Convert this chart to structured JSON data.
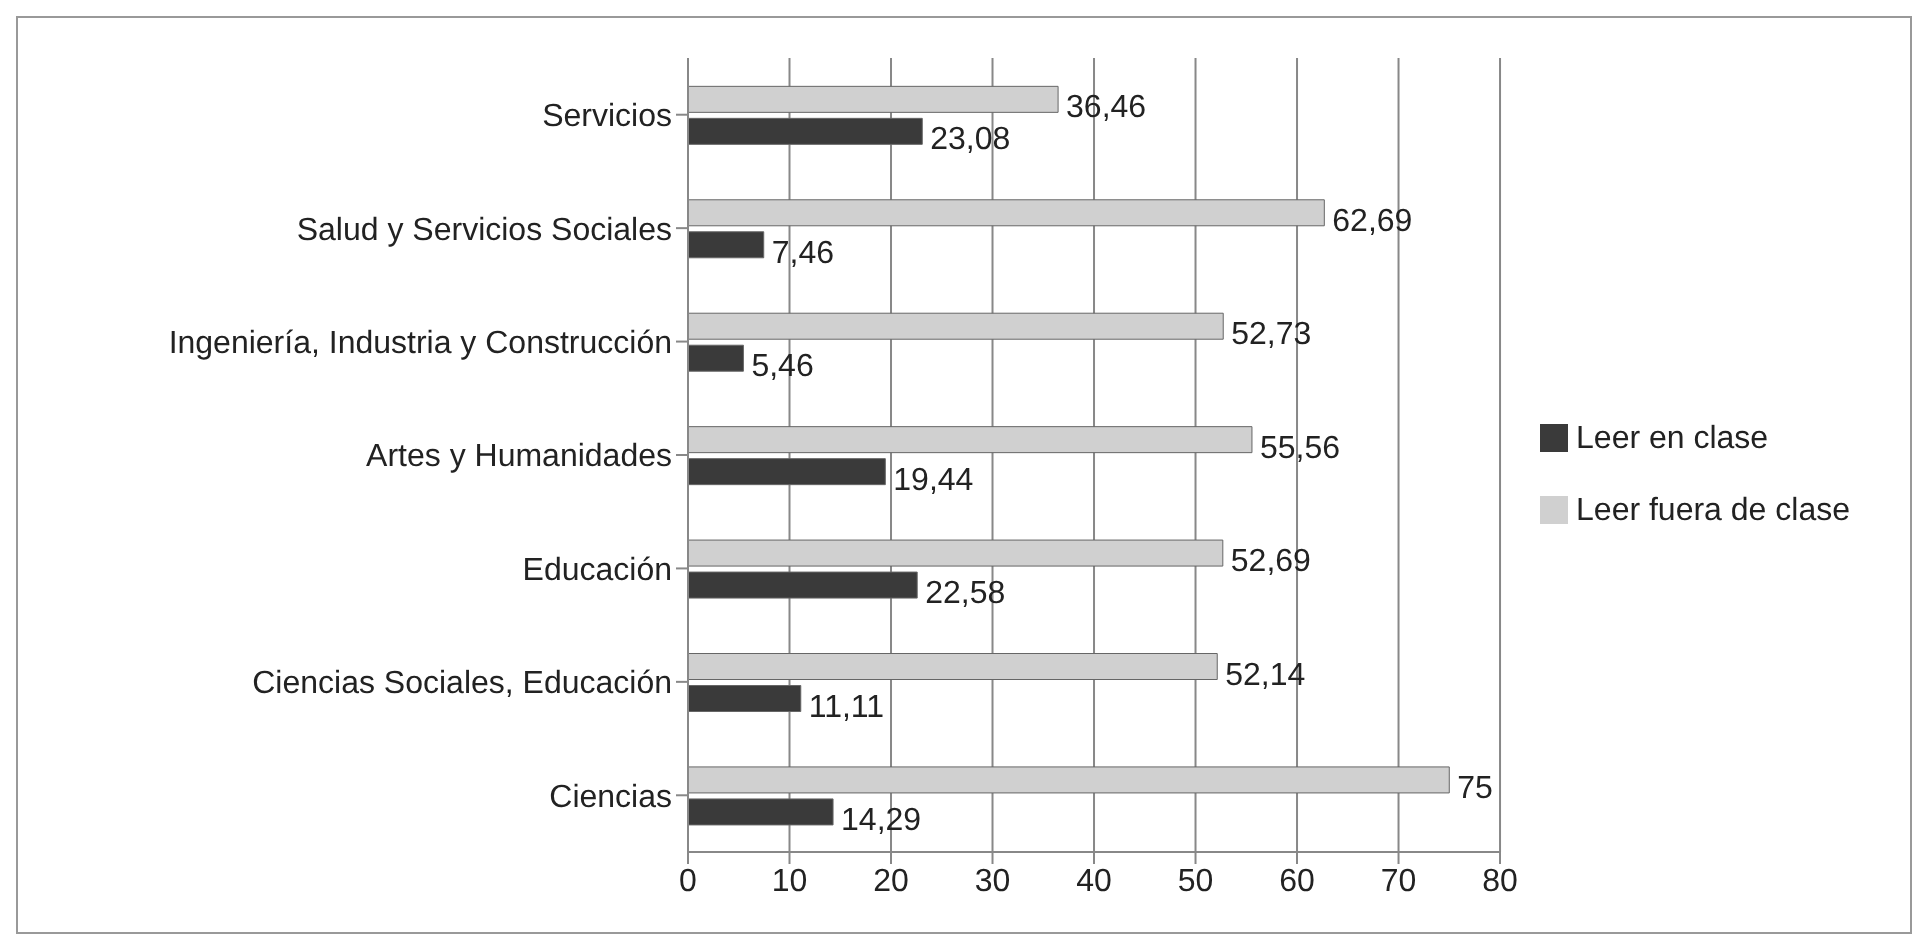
{
  "chart_data": {
    "type": "bar",
    "orientation": "horizontal",
    "categories": [
      "Servicios",
      "Salud y Servicios Sociales",
      "Ingeniería, Industria y Construcción",
      "Artes y Humanidades",
      "Educación",
      "Ciencias Sociales, Educación",
      "Ciencias"
    ],
    "series": [
      {
        "name": "Leer fuera de clase",
        "color": "#d0d0d0",
        "values": [
          36.46,
          62.69,
          52.73,
          55.56,
          52.69,
          52.14,
          75
        ],
        "value_labels": [
          "36,46",
          "62,69",
          "52,73",
          "55,56",
          "52,69",
          "52,14",
          "75"
        ]
      },
      {
        "name": "Leer en clase",
        "color": "#3a3a3a",
        "values": [
          23.08,
          7.46,
          5.46,
          19.44,
          22.58,
          11.11,
          14.29
        ],
        "value_labels": [
          "23,08",
          "7,46",
          "5,46",
          "19,44",
          "22,58",
          "11,11",
          "14,29"
        ]
      }
    ],
    "xlim": [
      0,
      80
    ],
    "xticks": [
      0,
      10,
      20,
      30,
      40,
      50,
      60,
      70,
      80
    ],
    "grid": "x",
    "legend": "right"
  }
}
